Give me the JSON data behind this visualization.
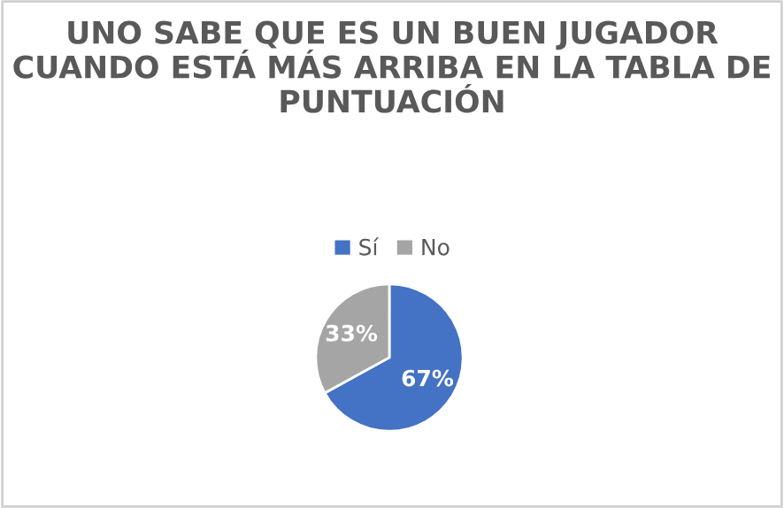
{
  "chart_data": {
    "type": "pie",
    "title": "UNO SABE QUE ES UN BUEN JUGADOR CUANDO ESTÁ MÁS ARRIBA EN LA TABLA DE PUNTUACIÓN",
    "categories": [
      "Sí",
      "No"
    ],
    "values": [
      67,
      33
    ],
    "colors": [
      "#4472c4",
      "#a5a5a5"
    ],
    "value_labels": [
      "67%",
      "33%"
    ],
    "legend": "top"
  }
}
